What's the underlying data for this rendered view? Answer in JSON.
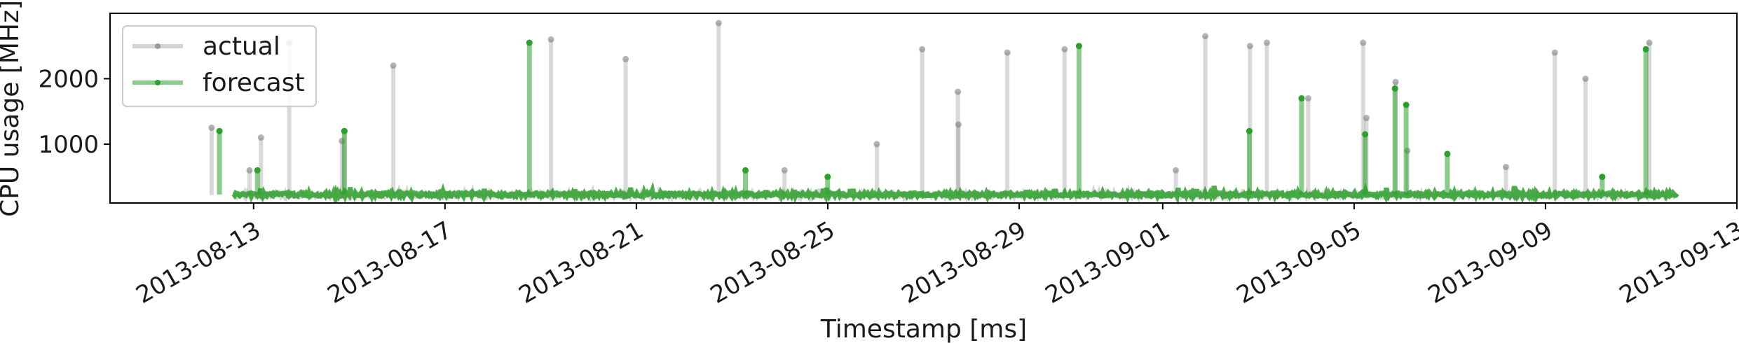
{
  "chart_data": {
    "type": "line",
    "xlabel": "Timestamp [ms]",
    "ylabel": "CPU usage [MHz]",
    "x_range": [
      "2013-08-10",
      "2013-09-13"
    ],
    "ylim": [
      100,
      3000
    ],
    "y_ticks": [
      1000,
      2000
    ],
    "x_ticks": [
      "2013-08-13",
      "2013-08-17",
      "2013-08-21",
      "2013-08-25",
      "2013-08-29",
      "2013-09-01",
      "2013-09-05",
      "2013-09-09",
      "2013-09-13"
    ],
    "grid": false,
    "legend_position": "top-left",
    "baseline": {
      "actual": 220,
      "forecast": 230
    },
    "series": [
      {
        "name": "actual",
        "color": "#808080",
        "spikes": [
          {
            "x": "2013-08-12",
            "y": 1250
          },
          {
            "x": "2013-08-13",
            "y": 600
          },
          {
            "x": "2013-08-13",
            "y": 1100
          },
          {
            "x": "2013-08-14",
            "y": 2550
          },
          {
            "x": "2013-08-15",
            "y": 1050
          },
          {
            "x": "2013-08-15",
            "y": 1200
          },
          {
            "x": "2013-08-16",
            "y": 2200
          },
          {
            "x": "2013-08-19",
            "y": 2600
          },
          {
            "x": "2013-08-21",
            "y": 2300
          },
          {
            "x": "2013-08-23",
            "y": 2850
          },
          {
            "x": "2013-08-24",
            "y": 600
          },
          {
            "x": "2013-08-26",
            "y": 1000
          },
          {
            "x": "2013-08-27",
            "y": 2450
          },
          {
            "x": "2013-08-28",
            "y": 1300
          },
          {
            "x": "2013-08-28",
            "y": 1800
          },
          {
            "x": "2013-08-29",
            "y": 2400
          },
          {
            "x": "2013-08-30",
            "y": 2450
          },
          {
            "x": "2013-09-01",
            "y": 600
          },
          {
            "x": "2013-09-02",
            "y": 2650
          },
          {
            "x": "2013-09-03",
            "y": 2500
          },
          {
            "x": "2013-09-03",
            "y": 2550
          },
          {
            "x": "2013-09-04",
            "y": 1700
          },
          {
            "x": "2013-09-05",
            "y": 2550
          },
          {
            "x": "2013-09-05",
            "y": 1400
          },
          {
            "x": "2013-09-06",
            "y": 1950
          },
          {
            "x": "2013-09-06",
            "y": 900
          },
          {
            "x": "2013-09-08",
            "y": 650
          },
          {
            "x": "2013-09-09",
            "y": 2400
          },
          {
            "x": "2013-09-10",
            "y": 2000
          },
          {
            "x": "2013-09-11",
            "y": 2550
          }
        ]
      },
      {
        "name": "forecast",
        "color": "#2ca02c",
        "spikes": [
          {
            "x": "2013-08-12",
            "y": 1200
          },
          {
            "x": "2013-08-13",
            "y": 600
          },
          {
            "x": "2013-08-15",
            "y": 1200
          },
          {
            "x": "2013-08-19",
            "y": 2550
          },
          {
            "x": "2013-08-23",
            "y": 600
          },
          {
            "x": "2013-08-25",
            "y": 500
          },
          {
            "x": "2013-08-30",
            "y": 2500
          },
          {
            "x": "2013-09-03",
            "y": 1200
          },
          {
            "x": "2013-09-04",
            "y": 1700
          },
          {
            "x": "2013-09-05",
            "y": 1150
          },
          {
            "x": "2013-09-06",
            "y": 1600
          },
          {
            "x": "2013-09-06",
            "y": 1850
          },
          {
            "x": "2013-09-07",
            "y": 850
          },
          {
            "x": "2013-09-10",
            "y": 500
          },
          {
            "x": "2013-09-11",
            "y": 2450
          }
        ]
      }
    ]
  }
}
